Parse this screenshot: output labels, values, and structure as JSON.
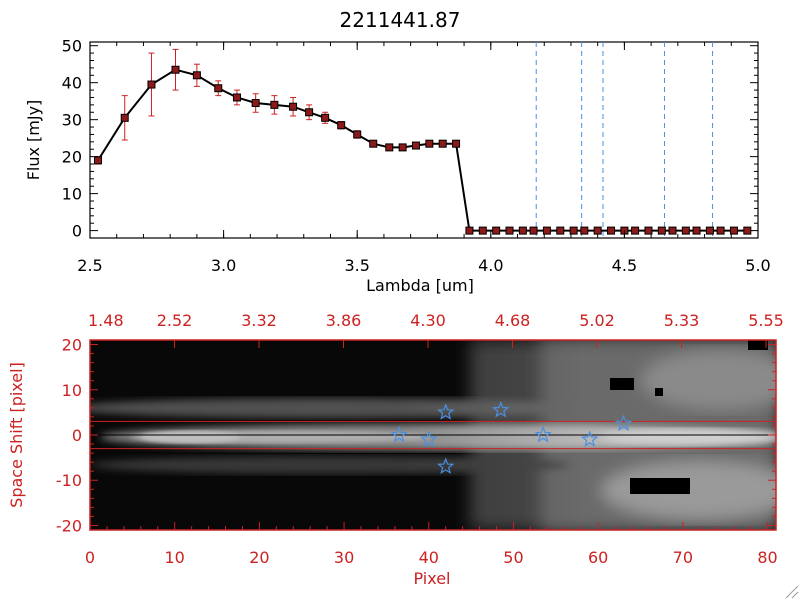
{
  "title": "2211441.87",
  "colors": {
    "black": "#000000",
    "red": "#cc2222",
    "marker_fill": "#8b1a1a",
    "blue": "#4a90e2",
    "white": "#ffffff"
  },
  "chart_data": [
    {
      "type": "line",
      "title": "2211441.87",
      "xlabel": "Lambda [um]",
      "ylabel": "Flux [mJy]",
      "xlim": [
        2.5,
        5.0
      ],
      "ylim": [
        -2,
        51
      ],
      "xticks": [
        2.5,
        3.0,
        3.5,
        4.0,
        4.5,
        5.0
      ],
      "xtick_labels": [
        "2.5",
        "3.0",
        "3.5",
        "4.0",
        "4.5",
        "5.0"
      ],
      "yticks": [
        0,
        10,
        20,
        30,
        40,
        50
      ],
      "ytick_labels": [
        "0",
        "10",
        "20",
        "30",
        "40",
        "50"
      ],
      "series": [
        {
          "x": [
            2.53,
            2.63,
            2.73,
            2.82,
            2.9,
            2.98,
            3.05,
            3.12,
            3.19,
            3.26,
            3.32,
            3.38,
            3.44,
            3.5,
            3.56,
            3.62,
            3.67,
            3.72,
            3.77,
            3.82,
            3.87,
            3.92,
            3.97,
            4.02,
            4.07,
            4.12,
            4.16,
            4.21,
            4.26,
            4.31,
            4.35,
            4.4,
            4.45,
            4.5,
            4.54,
            4.59,
            4.64,
            4.68,
            4.73,
            4.77,
            4.82,
            4.86,
            4.91,
            4.96
          ],
          "y": [
            19,
            30.5,
            39.5,
            43.5,
            42,
            38.5,
            36,
            34.5,
            34,
            33.5,
            32,
            30.5,
            28.5,
            26,
            23.5,
            22.5,
            22.5,
            23,
            23.5,
            23.5,
            23.5,
            0,
            0,
            0,
            0,
            0,
            0,
            0,
            0,
            0,
            0,
            0,
            0,
            0,
            0,
            0,
            0,
            0,
            0,
            0,
            0,
            0,
            0,
            0
          ],
          "yerr": [
            1,
            6,
            8.5,
            5.5,
            3,
            2,
            2,
            2.5,
            2.5,
            2.5,
            2,
            1.5,
            1,
            1,
            0.5,
            0.5,
            0.5,
            0.5,
            0.5,
            0.5,
            0.5,
            0,
            0,
            0,
            0,
            0,
            0,
            0,
            0,
            0,
            0,
            0,
            0,
            0,
            0,
            0,
            0,
            0,
            0,
            0,
            0,
            0,
            0,
            0
          ]
        }
      ],
      "vlines": [
        4.17,
        4.34,
        4.42,
        4.65,
        4.83
      ],
      "zero_line": true
    },
    {
      "type": "heatmap",
      "xlabel": "Pixel",
      "ylabel": "Space Shift [pixel]",
      "xlim": [
        0,
        81
      ],
      "ylim": [
        -21,
        21
      ],
      "xticks": [
        0,
        10,
        20,
        30,
        40,
        50,
        60,
        70,
        80
      ],
      "xtick_labels": [
        "0",
        "10",
        "20",
        "30",
        "40",
        "50",
        "60",
        "70",
        "80"
      ],
      "yticks": [
        -20,
        -10,
        0,
        10,
        20
      ],
      "ytick_labels": [
        "-20",
        "-10",
        "0",
        "10",
        "20"
      ],
      "top_axis_labels": [
        "1.48",
        "2.52",
        "3.32",
        "3.86",
        "4.30",
        "4.68",
        "5.02",
        "5.33",
        "5.55"
      ],
      "hlines": [
        3,
        -3
      ],
      "center_line": 0,
      "stars": [
        {
          "x": 36.5,
          "y": 0
        },
        {
          "x": 40,
          "y": -1
        },
        {
          "x": 42,
          "y": 5
        },
        {
          "x": 42,
          "y": -7
        },
        {
          "x": 48.5,
          "y": 5.5
        },
        {
          "x": 53.5,
          "y": 0
        },
        {
          "x": 59,
          "y": -1
        },
        {
          "x": 63,
          "y": 2.5
        }
      ]
    }
  ]
}
